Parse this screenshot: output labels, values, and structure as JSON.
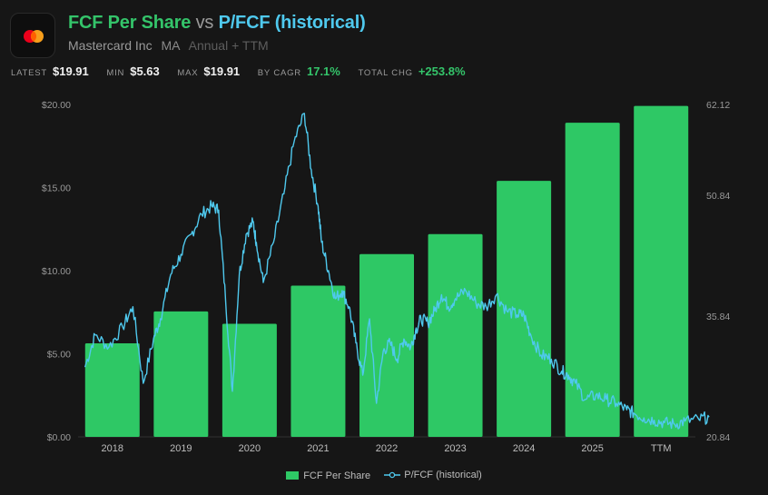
{
  "header": {
    "title_part1": "FCF Per Share",
    "title_vs": "vs",
    "title_part2": "P/FCF (historical)",
    "company": "Mastercard Inc",
    "ticker": "MA",
    "period": "Annual + TTM"
  },
  "stats": [
    {
      "label": "LATEST",
      "value": "$19.91",
      "accent": false
    },
    {
      "label": "MIN",
      "value": "$5.63",
      "accent": false
    },
    {
      "label": "MAX",
      "value": "$19.91",
      "accent": false
    },
    {
      "label": "BY CAGR",
      "value": "17.1%",
      "accent": true
    },
    {
      "label": "TOTAL CHG",
      "value": "+253.8%",
      "accent": true
    }
  ],
  "colors": {
    "bar": "#2ec865",
    "line": "#4fc9ee",
    "title_green": "#34c46a",
    "title_blue": "#4fc9ee",
    "background": "#161616"
  },
  "chart_data": {
    "type": "bar",
    "categories": [
      "2018",
      "2019",
      "2020",
      "2021",
      "2022",
      "2023",
      "2024",
      "2025",
      "TTM"
    ],
    "series": [
      {
        "name": "FCF Per Share",
        "type": "bar",
        "axis": "left",
        "values": [
          5.63,
          7.55,
          6.8,
          9.1,
          11.0,
          12.2,
          15.4,
          18.9,
          19.91
        ]
      },
      {
        "name": "P/FCF (historical)",
        "type": "line",
        "axis": "right",
        "x": [
          2017.6,
          2017.75,
          2017.95,
          2018.15,
          2018.3,
          2018.45,
          2018.6,
          2018.7,
          2018.85,
          2019.0,
          2019.15,
          2019.3,
          2019.45,
          2019.55,
          2019.65,
          2019.75,
          2019.85,
          2019.95,
          2020.05,
          2020.1,
          2020.2,
          2020.35,
          2020.5,
          2020.65,
          2020.8,
          2020.9,
          2021.0,
          2021.05,
          2021.15,
          2021.25,
          2021.35,
          2021.45,
          2021.55,
          2021.65,
          2021.75,
          2021.85,
          2021.95,
          2022.05,
          2022.15,
          2022.25,
          2022.35,
          2022.42,
          2022.5,
          2022.6,
          2022.7,
          2022.8,
          2022.9,
          2023.0,
          2023.15,
          2023.3,
          2023.45,
          2023.6,
          2023.75,
          2023.9,
          2024.0,
          2024.1,
          2024.25,
          2024.4,
          2024.55,
          2024.65,
          2024.75,
          2024.9,
          2025.05,
          2025.2,
          2025.35,
          2025.5,
          2025.6,
          2025.75,
          2025.9,
          2026.05,
          2026.2,
          2026.35,
          2026.55,
          2026.7
        ],
        "values": [
          29.5,
          33.5,
          32.0,
          34.5,
          37.0,
          27.5,
          33.0,
          35.5,
          41.0,
          43.5,
          46.0,
          48.5,
          49.5,
          49.0,
          38.0,
          26.5,
          41.0,
          46.0,
          47.5,
          45.0,
          40.0,
          45.0,
          51.0,
          57.5,
          61.0,
          54.0,
          49.5,
          45.0,
          41.5,
          38.0,
          39.0,
          37.0,
          32.5,
          28.5,
          35.5,
          25.0,
          31.5,
          32.5,
          30.5,
          33.0,
          32.0,
          34.0,
          35.5,
          35.0,
          36.5,
          38.5,
          37.0,
          38.0,
          39.0,
          37.5,
          37.0,
          38.5,
          36.5,
          36.0,
          36.0,
          33.5,
          31.0,
          30.5,
          29.0,
          28.5,
          27.5,
          25.5,
          26.0,
          25.5,
          25.0,
          24.2,
          23.8,
          23.2,
          22.9,
          22.6,
          22.4,
          22.8,
          23.0,
          23.3
        ]
      }
    ],
    "left_axis": {
      "ticks": [
        "$0.00",
        "$5.00",
        "$10.00",
        "$15.00",
        "$20.00"
      ],
      "range": [
        0,
        20
      ]
    },
    "right_axis": {
      "ticks": [
        "20.84",
        "35.84",
        "50.84",
        "62.12"
      ],
      "range": [
        20.84,
        62.12
      ]
    },
    "legend_placement": "bottom",
    "grid": false
  }
}
